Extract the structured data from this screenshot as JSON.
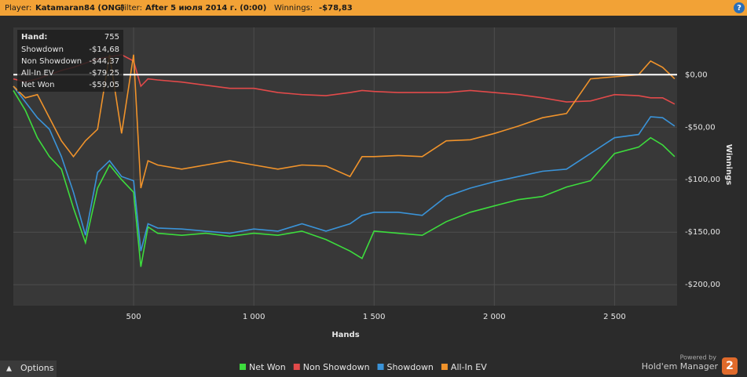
{
  "header": {
    "player_label": "Player:",
    "player": "Katamaran84 (ONG)",
    "filter_label": "Filter:",
    "filter": "After 5 июля 2014 г. (0:00)",
    "winnings_label": "Winnings:",
    "winnings": "-$78,83",
    "help": "?"
  },
  "tooltip": {
    "hand_label": "Hand:",
    "hand": 755,
    "rows": [
      {
        "label": "Showdown",
        "value": "-$14,68"
      },
      {
        "label": "Non Showdown",
        "value": "-$44,37"
      },
      {
        "label": "All-In EV",
        "value": "-$79,25"
      },
      {
        "label": "Net Won",
        "value": "-$59,05"
      }
    ]
  },
  "footer": {
    "options": "Options",
    "powered_by": "Powered by",
    "brand": "Hold'em Manager",
    "brand_version": "2"
  },
  "chart_data": {
    "type": "line",
    "x_label": "Hands",
    "y_label": "Winnings",
    "x": [
      0,
      50,
      100,
      150,
      200,
      250,
      300,
      350,
      400,
      450,
      500,
      530,
      560,
      600,
      700,
      800,
      900,
      1000,
      1100,
      1200,
      1300,
      1400,
      1450,
      1500,
      1600,
      1700,
      1800,
      1900,
      2000,
      2100,
      2200,
      2300,
      2400,
      2500,
      2600,
      2650,
      2700,
      2750
    ],
    "series": [
      {
        "name": "Net Won",
        "color": "#3ddc3d",
        "values": [
          -15,
          -34,
          -60,
          -78,
          -90,
          -127,
          -160,
          -108,
          -86,
          -100,
          -112,
          -183,
          -145,
          -151,
          -153,
          -151,
          -154,
          -151,
          -153,
          -149,
          -157,
          -168,
          -175,
          -149,
          -151,
          -153,
          -140,
          -131,
          -125,
          -119,
          -116,
          -107,
          -101,
          -75,
          -69,
          -60,
          -67,
          -78
        ]
      },
      {
        "name": "Non Showdown",
        "color": "#e24a4a",
        "values": [
          -4,
          -7,
          -4,
          0,
          4,
          7,
          11,
          15,
          17,
          19,
          13,
          -11,
          -4,
          -5,
          -7,
          -10,
          -13,
          -13,
          -17,
          -19,
          -20,
          -17,
          -15,
          -16,
          -17,
          -17,
          -17,
          -15,
          -17,
          -19,
          -22,
          -26,
          -25,
          -19,
          -20,
          -22,
          -22,
          -28
        ]
      },
      {
        "name": "Showdown",
        "color": "#3a93d8",
        "values": [
          -11,
          -26,
          -41,
          -52,
          -78,
          -112,
          -153,
          -93,
          -82,
          -97,
          -101,
          -168,
          -142,
          -146,
          -147,
          -149,
          -151,
          -147,
          -149,
          -142,
          -149,
          -142,
          -134,
          -131,
          -131,
          -134,
          -116,
          -108,
          -102,
          -97,
          -92,
          -90,
          -75,
          -60,
          -57,
          -40,
          -41,
          -49
        ]
      },
      {
        "name": "All-In EV",
        "color": "#f0932b",
        "values": [
          -11,
          -22,
          -19,
          -41,
          -63,
          -78,
          -63,
          -52,
          19,
          -56,
          19,
          -108,
          -82,
          -86,
          -90,
          -86,
          -82,
          -86,
          -90,
          -86,
          -87,
          -97,
          -78,
          -78,
          -77,
          -78,
          -63,
          -62,
          -56,
          -49,
          -41,
          -37,
          -4,
          -2,
          0,
          13,
          7,
          -4
        ]
      }
    ],
    "xlim": [
      0,
      2760
    ],
    "ylim": [
      -220,
      45
    ],
    "xticks": [
      500,
      {
        "value": 1000,
        "label": "1 000"
      },
      {
        "value": 1500,
        "label": "1 500"
      },
      {
        "value": 2000,
        "label": "2 000"
      },
      {
        "value": 2500,
        "label": "2 500"
      }
    ],
    "yticks": [
      {
        "value": 0,
        "label": "$0,00"
      },
      {
        "value": -50,
        "label": "-$50,00"
      },
      {
        "value": -100,
        "label": "-$100,00"
      },
      {
        "value": -150,
        "label": "-$150,00"
      },
      {
        "value": -200,
        "label": "-$200,00"
      }
    ],
    "grid": true
  }
}
